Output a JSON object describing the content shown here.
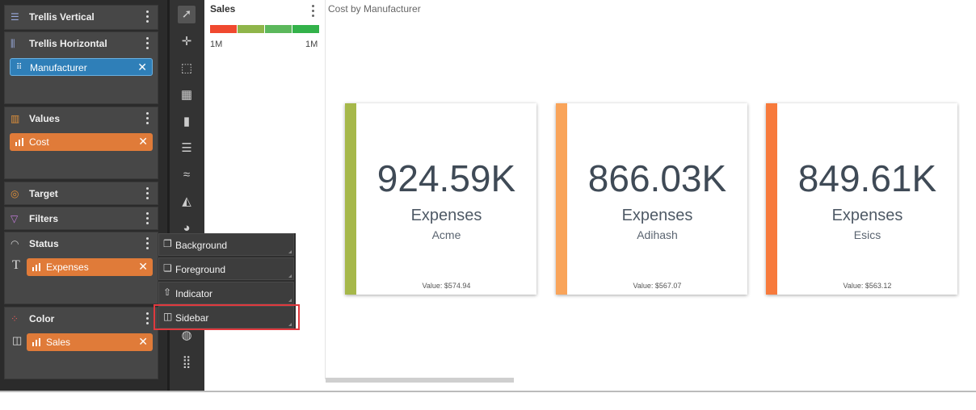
{
  "fields_panel": {
    "zones": [
      {
        "title": "Trellis Vertical"
      },
      {
        "title": "Trellis Horizontal",
        "pill": "Manufacturer"
      },
      {
        "title": "Values",
        "pill": "Cost"
      },
      {
        "title": "Target"
      },
      {
        "title": "Filters"
      },
      {
        "title": "Status",
        "side_glyph": "T",
        "pill": "Expenses"
      },
      {
        "title": "Color",
        "pill": "Sales"
      }
    ],
    "close_glyph": "✕"
  },
  "context_menu": {
    "items": [
      {
        "label": "Background",
        "icon": "background-icon"
      },
      {
        "label": "Foreground",
        "icon": "foreground-icon"
      },
      {
        "label": "Indicator",
        "icon": "indicator-arrow-icon"
      },
      {
        "label": "Sidebar",
        "icon": "sidebar-icon"
      }
    ],
    "highlighted": "Sidebar"
  },
  "legend": {
    "title": "Sales",
    "min_label": "1M",
    "max_label": "1M",
    "scale_colors": [
      "#f0492f",
      "#8fb54a",
      "#5cb85c",
      "#33b24a"
    ]
  },
  "viz": {
    "title": "Cost by Manufacturer",
    "cards": [
      {
        "value": "924.59K",
        "measure": "Expenses",
        "label": "Acme",
        "footer": "Value: $574.94",
        "stripe": "#a6b84a"
      },
      {
        "value": "866.03K",
        "measure": "Expenses",
        "label": "Adihash",
        "footer": "Value: $567.07",
        "stripe": "#f9a45a"
      },
      {
        "value": "849.61K",
        "measure": "Expenses",
        "label": "Esics",
        "footer": "Value: $563.12",
        "stripe": "#f77a3c"
      }
    ]
  }
}
